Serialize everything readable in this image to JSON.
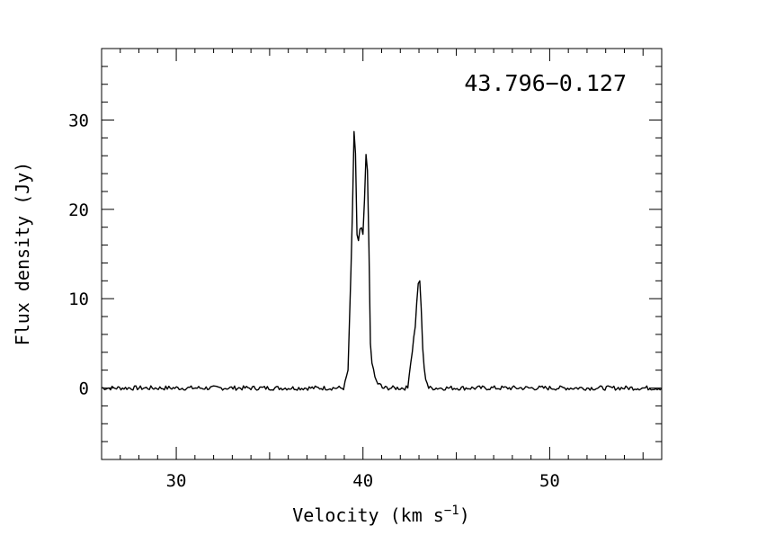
{
  "chart_data": {
    "type": "line",
    "title": "",
    "annotation": "43.796−0.127",
    "xlabel": "Velocity (km s",
    "xlabel_sup": "−1",
    "xlabel_end": ")",
    "ylabel": "Flux density (Jy)",
    "xlim": [
      26,
      56
    ],
    "ylim": [
      -8,
      38
    ],
    "xticks": [
      30,
      40,
      50
    ],
    "yticks": [
      0,
      10,
      20,
      30
    ],
    "x_minor_step": 1,
    "y_minor_step": 2,
    "grid": false,
    "series": [
      {
        "x": [
          39.0,
          39.2,
          39.4,
          39.55,
          39.7,
          39.8,
          39.9,
          40.0,
          40.1,
          40.2,
          40.3,
          40.4,
          40.5,
          40.6,
          40.7,
          40.8,
          41.0,
          42.4,
          42.6,
          42.8,
          42.9,
          43.0,
          43.1,
          43.2,
          43.3,
          43.5
        ],
        "y": [
          0.2,
          2.0,
          16.0,
          31.6,
          15.0,
          17.5,
          18.0,
          17.0,
          22.0,
          28.5,
          18.0,
          5.0,
          2.5,
          1.5,
          0.8,
          0.5,
          0.2,
          0.5,
          3.5,
          7.0,
          10.0,
          13.0,
          10.0,
          4.5,
          1.5,
          0.2
        ],
        "noise": 0.25
      }
    ]
  }
}
